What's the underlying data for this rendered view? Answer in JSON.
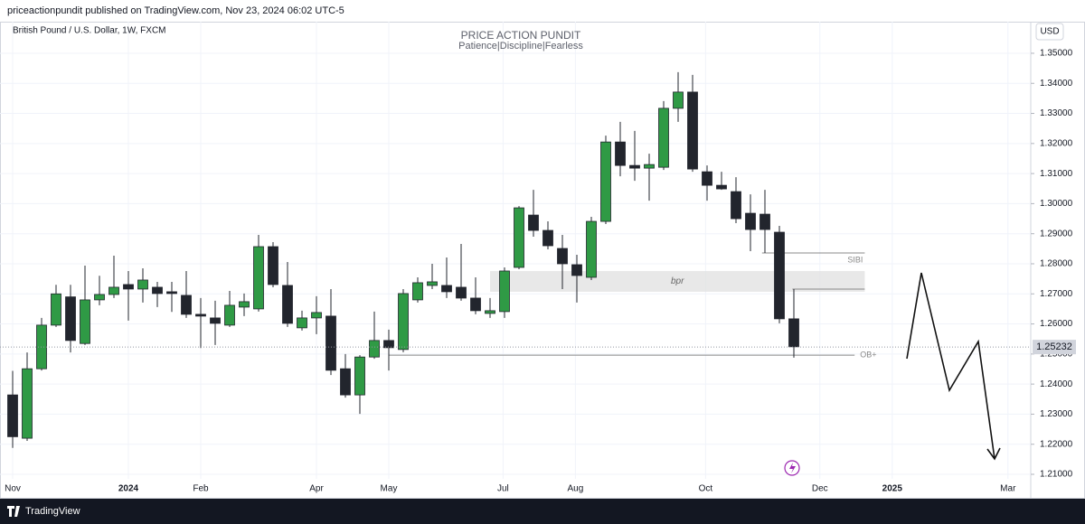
{
  "header": {
    "publisher": "priceactionpundit published on TradingView.com, Nov 23, 2024 06:02 UTC-5"
  },
  "footer": {
    "brand": "TradingView"
  },
  "chart_data": {
    "type": "candlestick",
    "symbol": "British Pound / U.S. Dollar, 1W, FXCM",
    "title": "PRICE ACTION PUNDIT",
    "subtitle": "Patience|Discipline|Fearless",
    "currency": "USD",
    "up_color": "#2f9a45",
    "down_color": "#22252d",
    "open": [
      1.2364,
      1.222,
      1.2451,
      1.2596,
      1.269,
      1.2535,
      1.268,
      1.2698,
      1.2731,
      1.2716,
      1.2722,
      1.2707,
      1.2695,
      1.2632,
      1.262,
      1.2596,
      1.2656,
      1.265,
      1.2857,
      1.2728,
      1.2587,
      1.262,
      1.2626,
      1.2451,
      1.2364,
      1.249,
      1.2545,
      1.2515,
      1.268,
      1.2728,
      1.2728,
      1.2722,
      1.2686,
      1.2635,
      1.2641,
      1.2788,
      1.2962,
      1.2911,
      1.2851,
      1.2797,
      1.2755,
      1.2941,
      1.3205,
      1.3127,
      1.3118,
      1.3121,
      1.3317,
      1.3371,
      1.3106,
      1.3061,
      1.304,
      1.2968,
      1.2965,
      1.2905,
      1.2617
    ],
    "high": [
      1.2444,
      1.2505,
      1.262,
      1.273,
      1.273,
      1.2794,
      1.276,
      1.2827,
      1.2776,
      1.2785,
      1.274,
      1.274,
      1.2776,
      1.2686,
      1.2677,
      1.271,
      1.2701,
      1.2896,
      1.2872,
      1.2806,
      1.2644,
      1.2692,
      1.2716,
      1.25,
      1.2496,
      1.2641,
      1.2581,
      1.2716,
      1.2755,
      1.28,
      1.2821,
      1.2866,
      1.2755,
      1.2686,
      1.2788,
      1.2992,
      1.3046,
      1.2941,
      1.2896,
      1.283,
      1.2956,
      1.3226,
      1.3272,
      1.3242,
      1.3166,
      1.3341,
      1.3437,
      1.3428,
      1.3127,
      1.3106,
      1.3088,
      1.3031,
      1.3046,
      1.2926,
      1.2716
    ],
    "low": [
      1.2188,
      1.2211,
      1.2445,
      1.259,
      1.2505,
      1.253,
      1.2662,
      1.2686,
      1.2611,
      1.2671,
      1.2656,
      1.264,
      1.262,
      1.252,
      1.253,
      1.259,
      1.2626,
      1.2641,
      1.2722,
      1.259,
      1.2578,
      1.2566,
      1.243,
      1.2355,
      1.2301,
      1.2484,
      1.2445,
      1.2506,
      1.2671,
      1.2716,
      1.2686,
      1.2677,
      1.2632,
      1.262,
      1.262,
      1.2782,
      1.289,
      1.2848,
      1.2716,
      1.2671,
      1.2746,
      1.2932,
      1.3091,
      1.3076,
      1.301,
      1.3112,
      1.3272,
      1.3106,
      1.301,
      1.3046,
      1.2935,
      1.2842,
      1.2836,
      1.2602,
      1.2488
    ],
    "close": [
      1.2225,
      1.2451,
      1.2596,
      1.27,
      1.2545,
      1.268,
      1.2698,
      1.2722,
      1.2716,
      1.2746,
      1.2701,
      1.2701,
      1.2632,
      1.2626,
      1.2602,
      1.2662,
      1.2674,
      1.2857,
      1.2731,
      1.2602,
      1.262,
      1.2638,
      1.2446,
      1.2364,
      1.249,
      1.2545,
      1.2521,
      1.2701,
      1.2737,
      1.274,
      1.2707,
      1.2686,
      1.2644,
      1.2644,
      1.2776,
      1.2986,
      1.2911,
      1.286,
      1.28,
      1.2761,
      1.2941,
      1.3205,
      1.3127,
      1.3118,
      1.313,
      1.3317,
      1.3371,
      1.3115,
      1.3061,
      1.3049,
      1.295,
      1.2914,
      1.2914,
      1.2617,
      1.2524
    ],
    "xlim": [
      -0.875,
      70.375
    ],
    "xticks": [
      {
        "value": 0,
        "label": "Nov"
      },
      {
        "value": 8,
        "label": "2024"
      },
      {
        "value": 13,
        "label": "Feb"
      },
      {
        "value": 21,
        "label": "Apr"
      },
      {
        "value": 26,
        "label": "May"
      },
      {
        "value": 33.9,
        "label": "Jul"
      },
      {
        "value": 38.9,
        "label": "Aug"
      },
      {
        "value": 47.9,
        "label": "Oct"
      },
      {
        "value": 55.8,
        "label": "Dec"
      },
      {
        "value": 60.8,
        "label": "2025"
      },
      {
        "value": 68.8,
        "label": "Mar"
      }
    ],
    "ylim": [
      1.2085,
      1.3605
    ],
    "yticks": [
      {
        "value": 1.21,
        "label": "1.21000"
      },
      {
        "value": 1.22,
        "label": "1.22000"
      },
      {
        "value": 1.23,
        "label": "1.23000"
      },
      {
        "value": 1.24,
        "label": "1.24000"
      },
      {
        "value": 1.25,
        "label": "1.25000"
      },
      {
        "value": 1.26,
        "label": "1.26000"
      },
      {
        "value": 1.27,
        "label": "1.27000"
      },
      {
        "value": 1.28,
        "label": "1.28000"
      },
      {
        "value": 1.29,
        "label": "1.29000"
      },
      {
        "value": 1.3,
        "label": "1.30000"
      },
      {
        "value": 1.31,
        "label": "1.31000"
      },
      {
        "value": 1.32,
        "label": "1.32000"
      },
      {
        "value": 1.33,
        "label": "1.33000"
      },
      {
        "value": 1.34,
        "label": "1.34000"
      },
      {
        "value": 1.35,
        "label": "1.35000"
      }
    ],
    "last_price": 1.25232,
    "grid": true,
    "zones": [
      {
        "label": "bpr",
        "x": [
          33,
          58.9
        ],
        "y": [
          1.2707,
          1.2776
        ]
      }
    ],
    "levels": [
      {
        "label": "SIBI",
        "value": 1.2836,
        "x": [
          51.8,
          58.9
        ]
      },
      {
        "label": "OB+",
        "value": 1.2496,
        "x": [
          26,
          58.2
        ]
      },
      {
        "value": 1.2716,
        "x": [
          53.9,
          58.9
        ]
      }
    ]
  }
}
